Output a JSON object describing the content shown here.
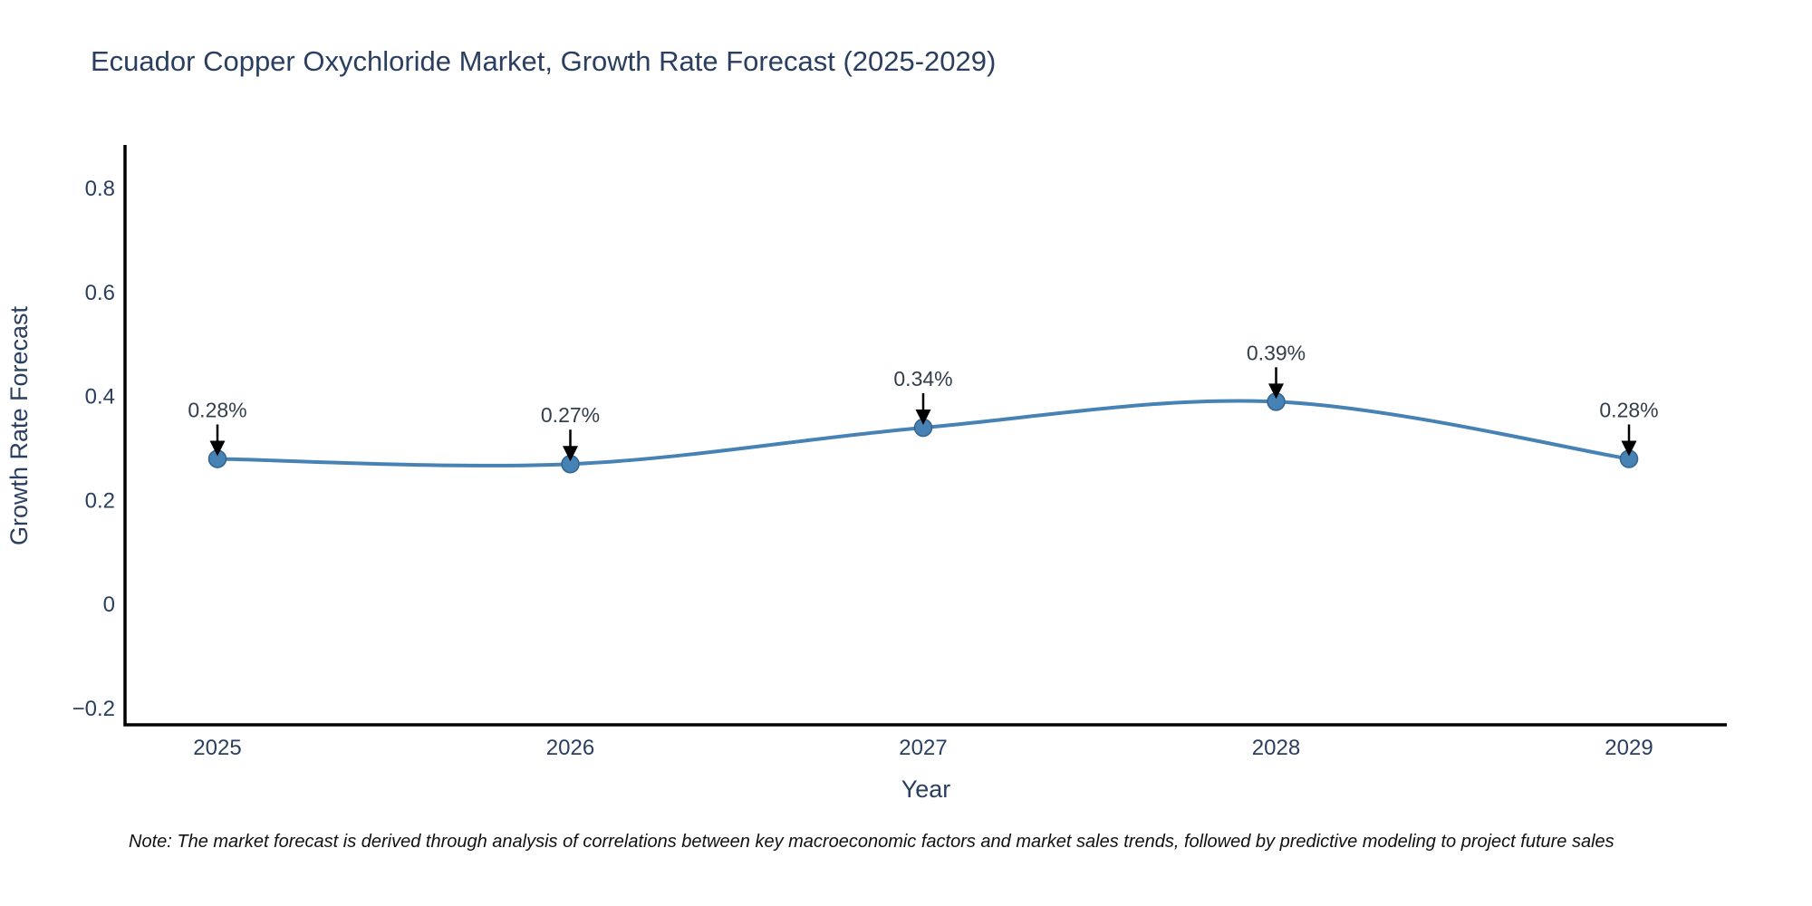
{
  "title": "Ecuador Copper Oxychloride Market, Growth Rate Forecast (2025-2029)",
  "note": "Note: The market forecast is derived through analysis of correlations between key macroeconomic factors and market sales trends, followed by predictive modeling to project future sales",
  "colors": {
    "line": "#4682b4",
    "marker_fill": "#4682b4",
    "marker_edge": "#35658e",
    "axis": "#000000",
    "text": "#2a3f5f",
    "annotation_text": "#333e4c",
    "arrow": "#000000",
    "background": "#ffffff"
  },
  "chart_data": {
    "type": "line",
    "title": "Ecuador Copper Oxychloride Market, Growth Rate Forecast (2025-2029)",
    "xlabel": "Year",
    "ylabel": "Growth Rate Forecast",
    "x": [
      2025,
      2026,
      2027,
      2028,
      2029
    ],
    "categories": [
      "2025",
      "2026",
      "2027",
      "2028",
      "2029"
    ],
    "values": [
      0.28,
      0.27,
      0.34,
      0.39,
      0.28
    ],
    "point_labels": [
      "0.28%",
      "0.27%",
      "0.34%",
      "0.39%",
      "0.28%"
    ],
    "yticks": [
      0.8,
      0.6,
      0.4,
      0.2,
      0,
      -0.2
    ],
    "ytick_labels": [
      "0.8",
      "0.6",
      "0.4",
      "0.2",
      "0",
      "−0.2"
    ],
    "ylim": [
      -0.23,
      0.88
    ],
    "grid": false,
    "legend_position": "none",
    "line_shape": "spline",
    "marker": "circle",
    "annotation_arrows": true
  }
}
